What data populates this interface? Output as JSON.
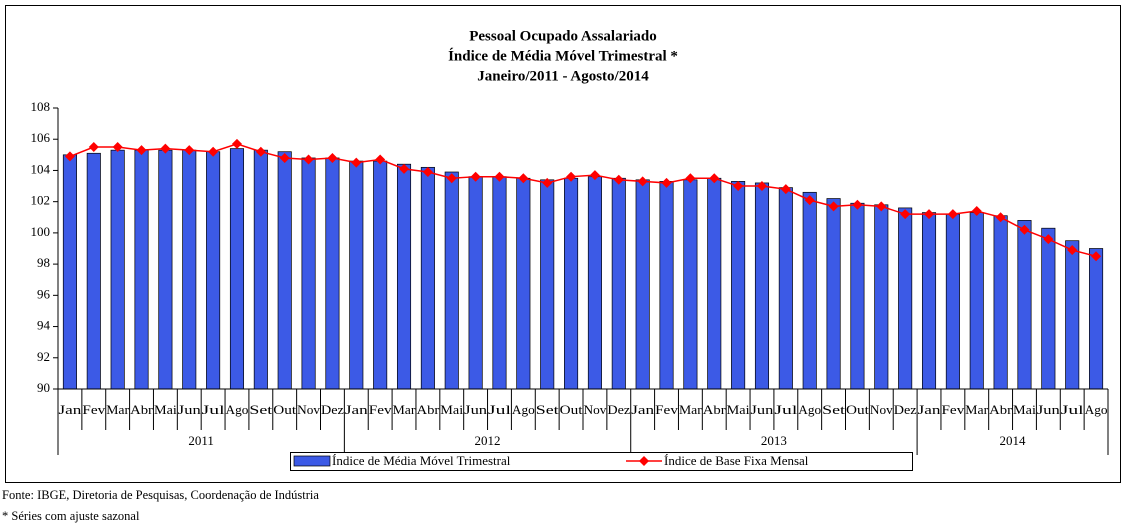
{
  "chart_data": {
    "type": "bar_line",
    "title": [
      "Pessoal Ocupado Assalariado",
      "Índice de Média Móvel Trimestral *",
      "Janeiro/2011 - Agosto/2014"
    ],
    "categories": [
      "Jan",
      "Fev",
      "Mar",
      "Abr",
      "Mai",
      "Jun",
      "Jul",
      "Ago",
      "Set",
      "Out",
      "Nov",
      "Dez",
      "Jan",
      "Fev",
      "Mar",
      "Abr",
      "Mai",
      "Jun",
      "Jul",
      "Ago",
      "Set",
      "Out",
      "Nov",
      "Dez",
      "Jan",
      "Fev",
      "Mar",
      "Abr",
      "Mai",
      "Jun",
      "Jul",
      "Ago",
      "Set",
      "Out",
      "Nov",
      "Dez",
      "Jan",
      "Fev",
      "Mar",
      "Abr",
      "Mai",
      "Jun",
      "Jul",
      "Ago"
    ],
    "year_groups": [
      "2011",
      "2012",
      "2013",
      "2014"
    ],
    "series": [
      {
        "name": "Índice de Média Móvel Trimestral",
        "type": "bar",
        "color": "#3c5ae6",
        "values": [
          105.0,
          105.1,
          105.3,
          105.3,
          105.3,
          105.3,
          105.2,
          105.4,
          105.3,
          105.2,
          104.8,
          104.8,
          104.6,
          104.6,
          104.4,
          104.2,
          103.9,
          103.6,
          103.6,
          103.5,
          103.4,
          103.5,
          103.6,
          103.5,
          103.4,
          103.3,
          103.4,
          103.5,
          103.3,
          103.2,
          102.9,
          102.6,
          102.2,
          101.9,
          101.8,
          101.6,
          101.3,
          101.2,
          101.3,
          101.1,
          100.8,
          100.3,
          99.5,
          99.0
        ]
      },
      {
        "name": "Índice de Base Fixa Mensal",
        "type": "line",
        "color": "#ff0000",
        "values": [
          104.9,
          105.5,
          105.5,
          105.3,
          105.4,
          105.3,
          105.2,
          105.7,
          105.2,
          104.8,
          104.7,
          104.8,
          104.5,
          104.7,
          104.1,
          103.9,
          103.5,
          103.6,
          103.6,
          103.5,
          103.2,
          103.6,
          103.7,
          103.4,
          103.3,
          103.2,
          103.5,
          103.5,
          103.0,
          103.0,
          102.8,
          102.1,
          101.7,
          101.8,
          101.7,
          101.2,
          101.2,
          101.2,
          101.4,
          101.0,
          100.2,
          99.6,
          98.9,
          98.5
        ]
      }
    ],
    "ylim": [
      90,
      108
    ],
    "yticks": [
      90,
      92,
      94,
      96,
      98,
      100,
      102,
      104,
      106,
      108
    ],
    "grid": false,
    "legend": "bottom"
  },
  "notes": [
    "Fonte: IBGE, Diretoria de Pesquisas, Coordenação de Indústria",
    "* Séries com ajuste sazonal"
  ]
}
